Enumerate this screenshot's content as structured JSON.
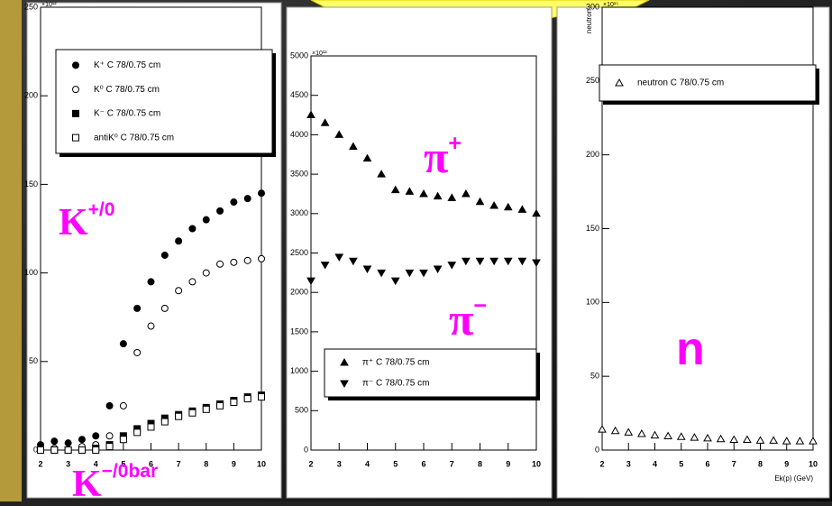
{
  "chart_data": [
    {
      "type": "scatter",
      "xlim": [
        2,
        10
      ],
      "ylim": [
        0,
        250
      ],
      "xticks": [
        2,
        3,
        4,
        5,
        6,
        7,
        8,
        9,
        10
      ],
      "yticks": [
        0,
        50,
        100,
        150,
        200,
        250
      ],
      "y_scale_label": "×10¹²",
      "series": [
        {
          "name": "K⁺ C 78/0.75 cm",
          "marker": "circle-filled",
          "color": "#000000",
          "x": [
            2,
            2.5,
            3,
            3.5,
            4,
            4.5,
            5,
            5.5,
            6,
            6.5,
            7,
            7.5,
            8,
            8.5,
            9,
            9.5,
            10
          ],
          "values": [
            3,
            5,
            4,
            6,
            8,
            25,
            60,
            80,
            95,
            110,
            118,
            125,
            130,
            135,
            140,
            142,
            145
          ]
        },
        {
          "name": "K⁰ C 78/0.75 cm",
          "marker": "circle-open",
          "color": "#000000",
          "x": [
            2,
            2.5,
            3,
            3.5,
            4,
            4.5,
            5,
            5.5,
            6,
            6.5,
            7,
            7.5,
            8,
            8.5,
            9,
            9.5,
            10
          ],
          "values": [
            0,
            1,
            0,
            2,
            3,
            8,
            25,
            55,
            70,
            80,
            90,
            95,
            100,
            105,
            106,
            107,
            108
          ]
        },
        {
          "name": "K⁻ C 78/0.75 cm",
          "marker": "square-filled",
          "color": "#000000",
          "x": [
            2,
            2.5,
            3,
            3.5,
            4,
            4.5,
            5,
            5.5,
            6,
            6.5,
            7,
            7.5,
            8,
            8.5,
            9,
            9.5,
            10
          ],
          "values": [
            0,
            0,
            0,
            0,
            1,
            3,
            8,
            12,
            15,
            18,
            20,
            22,
            24,
            26,
            28,
            30,
            31
          ]
        },
        {
          "name": "antiK⁰ C 78/0.75 cm",
          "marker": "square-open",
          "color": "#000000",
          "x": [
            2,
            2.5,
            3,
            3.5,
            4,
            4.5,
            5,
            5.5,
            6,
            6.5,
            7,
            7.5,
            8,
            8.5,
            9,
            9.5,
            10
          ],
          "values": [
            0,
            0,
            0,
            0,
            0,
            2,
            6,
            10,
            13,
            16,
            19,
            21,
            23,
            25,
            27,
            29,
            30
          ]
        }
      ],
      "annotations": [
        {
          "text": "K",
          "sup": "+/0"
        },
        {
          "text": "K",
          "sup": "−/0bar"
        }
      ]
    },
    {
      "type": "scatter",
      "xlim": [
        2,
        10
      ],
      "ylim": [
        0,
        5000
      ],
      "xticks": [
        2,
        3,
        4,
        5,
        6,
        7,
        8,
        9,
        10
      ],
      "yticks": [
        0,
        500,
        1000,
        1500,
        2000,
        2500,
        3000,
        3500,
        4000,
        4500,
        5000
      ],
      "y_scale_label": "×10¹²",
      "series": [
        {
          "name": "π⁺ C 78/0.75 cm",
          "marker": "triangle-up-filled",
          "color": "#000000",
          "x": [
            2,
            2.5,
            3,
            3.5,
            4,
            4.5,
            5,
            5.5,
            6,
            6.5,
            7,
            7.5,
            8,
            8.5,
            9,
            9.5,
            10
          ],
          "values": [
            4250,
            4150,
            4000,
            3850,
            3700,
            3500,
            3300,
            3280,
            3250,
            3220,
            3200,
            3250,
            3150,
            3100,
            3080,
            3050,
            3000
          ]
        },
        {
          "name": "π⁻ C 78/0.75 cm",
          "marker": "triangle-down-filled",
          "color": "#000000",
          "x": [
            2,
            2.5,
            3,
            3.5,
            4,
            4.5,
            5,
            5.5,
            6,
            6.5,
            7,
            7.5,
            8,
            8.5,
            9,
            9.5,
            10
          ],
          "values": [
            2150,
            2350,
            2450,
            2400,
            2300,
            2250,
            2150,
            2250,
            2250,
            2300,
            2350,
            2400,
            2400,
            2400,
            2400,
            2400,
            2380
          ]
        }
      ],
      "annotations": [
        {
          "text": "π",
          "sup": "+"
        },
        {
          "text": "π",
          "sup": "−"
        }
      ]
    },
    {
      "type": "scatter",
      "xlim": [
        2,
        10
      ],
      "ylim": [
        0,
        300
      ],
      "xticks": [
        2,
        3,
        4,
        5,
        6,
        7,
        8,
        9,
        10
      ],
      "yticks": [
        0,
        50,
        100,
        150,
        200,
        250,
        300
      ],
      "y_scale_label": "×10¹⁵",
      "ylabel": "neutron",
      "xlabel": "Ek(p) (GeV)",
      "series": [
        {
          "name": "neutron C 78/0.75 cm",
          "marker": "triangle-up-open",
          "color": "#000000",
          "x": [
            2,
            2.5,
            3,
            3.5,
            4,
            4.5,
            5,
            5.5,
            6,
            6.5,
            7,
            7.5,
            8,
            8.5,
            9,
            9.5,
            10
          ],
          "values": [
            14,
            13,
            12,
            11,
            10,
            9.5,
            9,
            8.5,
            8,
            7.5,
            7,
            7,
            6.5,
            6.5,
            6,
            6,
            6
          ]
        }
      ],
      "annotations": [
        {
          "text": "n",
          "sup": ""
        }
      ]
    }
  ]
}
